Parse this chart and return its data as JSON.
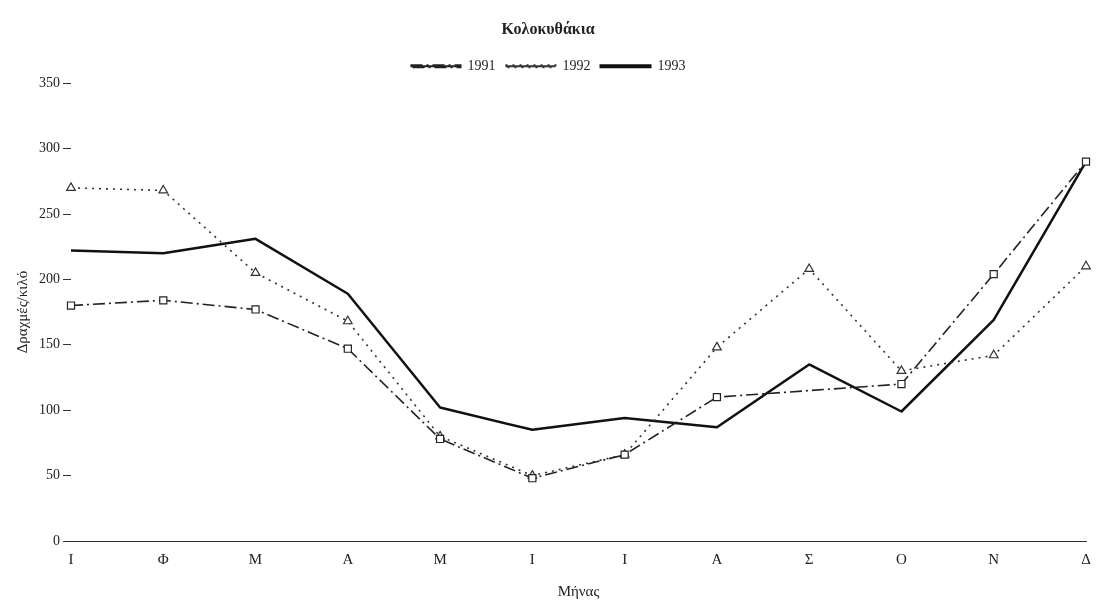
{
  "chart_data": {
    "type": "line",
    "title": "Κολοκυθάκια",
    "xlabel": "Μήνας",
    "ylabel": "Δραχμές/κιλό",
    "categories": [
      "Ι",
      "Φ",
      "Μ",
      "Α",
      "Μ",
      "Ι",
      "Ι",
      "Α",
      "Σ",
      "Ο",
      "Ν",
      "Δ"
    ],
    "series": [
      {
        "name": "1991",
        "color": "#222222",
        "marker": "square",
        "line_style": "dashed",
        "values": [
          180,
          184,
          177,
          147,
          78,
          48,
          66,
          110,
          null,
          120,
          204,
          290
        ]
      },
      {
        "name": "1992",
        "color": "#333333",
        "marker": "triangle",
        "line_style": "dotted",
        "values": [
          270,
          268,
          205,
          168,
          80,
          50,
          66,
          148,
          208,
          130,
          142,
          210
        ]
      },
      {
        "name": "1993",
        "color": "#111111",
        "marker": "none",
        "line_style": "solid",
        "values": [
          222,
          220,
          231,
          189,
          102,
          85,
          94,
          87,
          135,
          99,
          169,
          290
        ]
      }
    ],
    "ylim": [
      0,
      350
    ],
    "yticks": [
      0,
      50,
      100,
      150,
      200,
      250,
      300,
      350
    ],
    "grid": false,
    "legend": "top"
  }
}
